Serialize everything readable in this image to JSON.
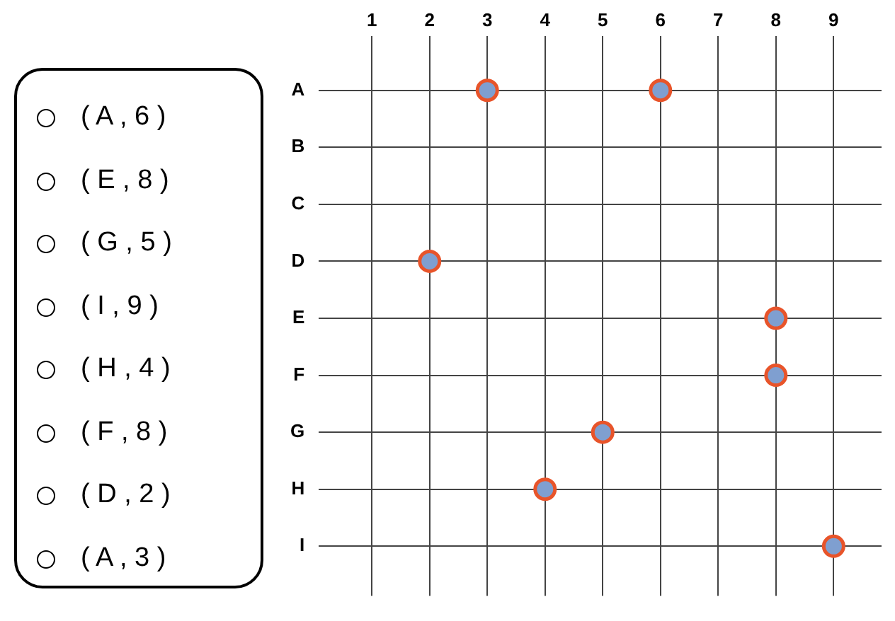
{
  "chart_data": [
    {
      "type": "scatter",
      "orientation": "horizontal",
      "categories": [
        "A",
        "B",
        "C",
        "D",
        "E",
        "F",
        "G",
        "H",
        "I"
      ],
      "series": [
        {
          "color": "#7f9fd0",
          "values": [
            3,
            null,
            null,
            2,
            8,
            8,
            5,
            4,
            9
          ]
        },
        {
          "color": "#7f9fd0",
          "values": [
            6,
            null,
            null,
            null,
            null,
            null,
            null,
            null,
            null
          ]
        }
      ],
      "marker": "circle",
      "grid": true,
      "xlim": [
        0.08,
        9.83
      ],
      "xticks": [
        1,
        2,
        3,
        4,
        5,
        6,
        7,
        8,
        9
      ]
    },
    {
      "type": "other",
      "annotations": [
        "( A , 6 )",
        "( E , 8 )",
        "( G , 5 )",
        "( I , 9 )",
        "( H , 4 )",
        "( F , 8 )",
        "( D , 2 )",
        "( A , 3 )"
      ]
    }
  ]
}
